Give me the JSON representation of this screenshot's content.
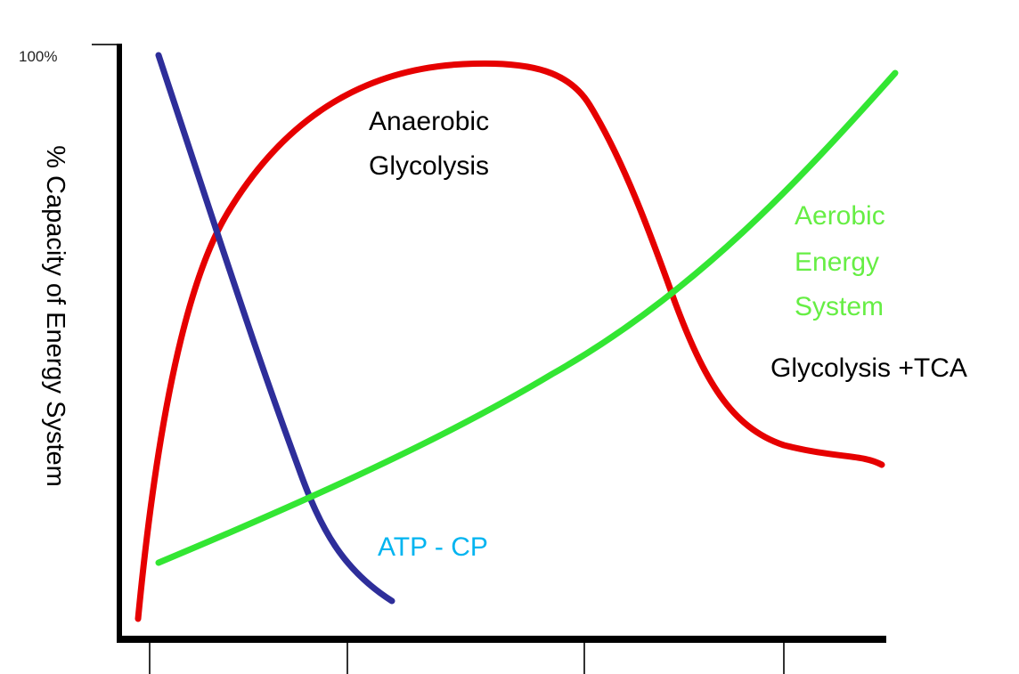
{
  "y_axis": {
    "label": "% Capacity of Energy System",
    "top_tick_label": "100%"
  },
  "curves": {
    "anaerobic": {
      "label_line1": "Anaerobic",
      "label_line2": "Glycolysis",
      "color": "#e60000"
    },
    "atp_cp": {
      "label": "ATP - CP",
      "color": "#2e2e9a",
      "label_color": "#00b4f0"
    },
    "aerobic": {
      "label_line1": "Aerobic",
      "label_line2": "Energy",
      "label_line3": "System",
      "sublabel": "Glycolysis +TCA",
      "color": "#33e633",
      "label_color": "#66ee44"
    }
  }
}
